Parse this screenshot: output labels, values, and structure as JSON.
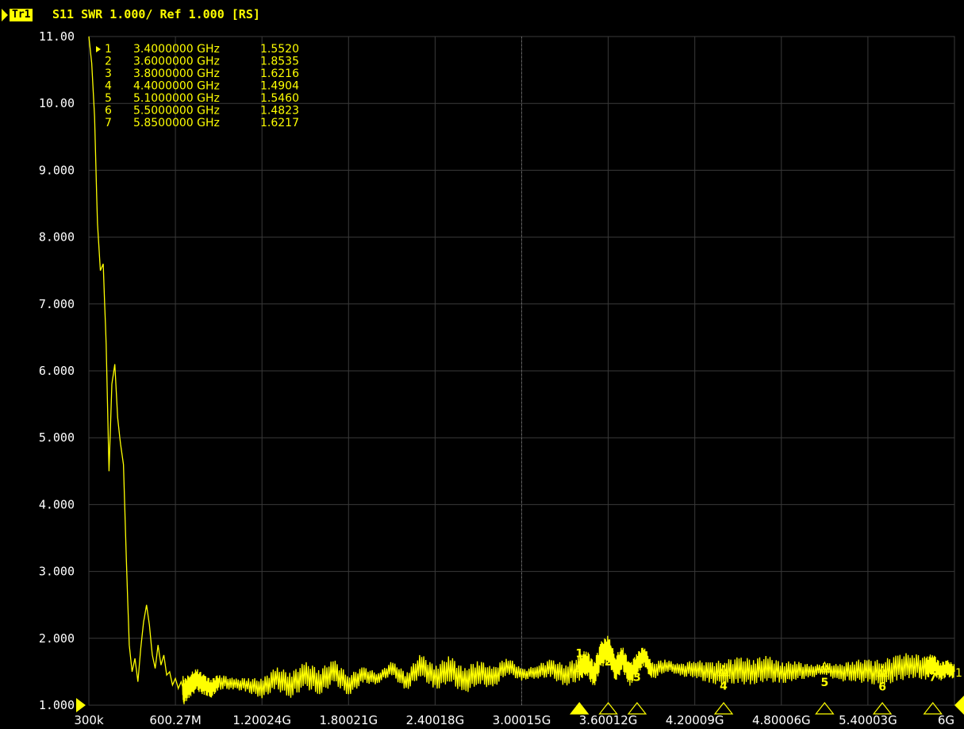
{
  "header": {
    "trace_tab": "Tr1",
    "title": "S11 SWR 1.000/ Ref 1.000 [RS]"
  },
  "colors": {
    "background": "#000000",
    "trace": "#ffff00",
    "grid": "#3a3a3a",
    "text": "#ffffff"
  },
  "chart_data": {
    "type": "line",
    "title": "",
    "xlabel": "",
    "ylabel": "",
    "xlim": [
      0.0003,
      6.0
    ],
    "ylim": [
      1.0,
      11.0
    ],
    "y_ticks": [
      "11.00",
      "10.00",
      "9.000",
      "8.000",
      "7.000",
      "6.000",
      "5.000",
      "4.000",
      "3.000",
      "2.000",
      "1.000"
    ],
    "x_ticks": [
      "300k",
      "600.27M",
      "1.20024G",
      "1.80021G",
      "2.40018G",
      "3.00015G",
      "3.60012G",
      "4.20009G",
      "4.80006G",
      "5.40003G",
      "6G"
    ],
    "grid": true,
    "ref_value": 1.0,
    "ref_label": "1",
    "markers": [
      {
        "id": "1",
        "freq": "3.4000000 GHz",
        "x": 3.4,
        "y": 1.552,
        "value": "1.5520"
      },
      {
        "id": "2",
        "freq": "3.6000000 GHz",
        "x": 3.6,
        "y": 1.8535,
        "value": "1.8535"
      },
      {
        "id": "3",
        "freq": "3.8000000 GHz",
        "x": 3.8,
        "y": 1.6216,
        "value": "1.6216"
      },
      {
        "id": "4",
        "freq": "4.4000000 GHz",
        "x": 4.4,
        "y": 1.4904,
        "value": "1.4904"
      },
      {
        "id": "5",
        "freq": "5.1000000 GHz",
        "x": 5.1,
        "y": 1.546,
        "value": "1.5460"
      },
      {
        "id": "6",
        "freq": "5.5000000 GHz",
        "x": 5.5,
        "y": 1.4823,
        "value": "1.4823"
      },
      {
        "id": "7",
        "freq": "5.8500000 GHz",
        "x": 5.85,
        "y": 1.6217,
        "value": "1.6217"
      }
    ],
    "series": [
      {
        "x": [
          0.0003,
          0.02,
          0.04,
          0.06,
          0.08,
          0.1,
          0.12,
          0.14,
          0.16,
          0.18,
          0.2,
          0.22,
          0.24,
          0.26,
          0.28,
          0.3,
          0.32,
          0.34,
          0.36,
          0.38,
          0.4,
          0.42,
          0.44,
          0.46,
          0.48,
          0.5,
          0.52,
          0.54,
          0.56,
          0.58,
          0.6,
          0.62,
          0.64,
          0.66,
          0.7,
          0.75,
          0.8,
          0.85,
          0.9,
          1.0,
          1.1,
          1.2,
          1.3,
          1.4,
          1.5,
          1.6,
          1.7,
          1.8,
          1.9,
          2.0,
          2.1,
          2.2,
          2.3,
          2.4,
          2.5,
          2.6,
          2.7,
          2.8,
          2.9,
          3.0,
          3.1,
          3.2,
          3.3,
          3.4,
          3.45,
          3.5,
          3.55,
          3.6,
          3.65,
          3.7,
          3.75,
          3.8,
          3.85,
          3.9,
          4.0,
          4.1,
          4.2,
          4.3,
          4.4,
          4.5,
          4.6,
          4.7,
          4.8,
          4.9,
          5.0,
          5.1,
          5.2,
          5.3,
          5.4,
          5.5,
          5.6,
          5.7,
          5.8,
          5.85,
          5.9,
          5.95,
          6.0
        ],
        "y": [
          11.0,
          10.6,
          9.8,
          8.2,
          7.5,
          7.6,
          6.4,
          4.5,
          5.8,
          6.1,
          5.3,
          4.9,
          4.6,
          3.2,
          1.9,
          1.5,
          1.7,
          1.35,
          1.85,
          2.25,
          2.5,
          2.2,
          1.75,
          1.55,
          1.9,
          1.6,
          1.75,
          1.45,
          1.5,
          1.3,
          1.4,
          1.25,
          1.35,
          1.2,
          1.3,
          1.38,
          1.3,
          1.25,
          1.35,
          1.32,
          1.3,
          1.25,
          1.4,
          1.3,
          1.45,
          1.35,
          1.5,
          1.3,
          1.45,
          1.4,
          1.55,
          1.35,
          1.6,
          1.4,
          1.55,
          1.35,
          1.5,
          1.4,
          1.6,
          1.45,
          1.5,
          1.55,
          1.45,
          1.55,
          1.65,
          1.45,
          1.75,
          1.85,
          1.55,
          1.7,
          1.45,
          1.62,
          1.75,
          1.5,
          1.6,
          1.52,
          1.55,
          1.48,
          1.49,
          1.52,
          1.5,
          1.55,
          1.48,
          1.52,
          1.5,
          1.55,
          1.48,
          1.52,
          1.5,
          1.48,
          1.55,
          1.6,
          1.55,
          1.62,
          1.5,
          1.55,
          1.5
        ]
      }
    ]
  }
}
